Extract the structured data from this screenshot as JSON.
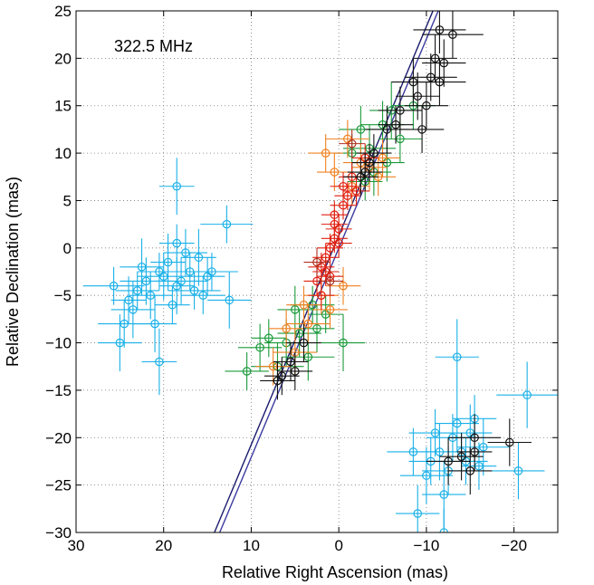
{
  "chart_data": {
    "type": "scatter",
    "title": "",
    "annotation": "322.5 MHz",
    "xlabel": "Relative Right Ascension (mas)",
    "ylabel": "Relative Declination (mas)",
    "xlim": [
      30,
      -25
    ],
    "ylim": [
      -30,
      25
    ],
    "x_ticks": [
      30,
      20,
      10,
      0,
      -10,
      -20
    ],
    "x_tick_labels": [
      "30",
      "20",
      "10",
      "0",
      "−10",
      "−20"
    ],
    "y_ticks": [
      25,
      20,
      15,
      10,
      5,
      0,
      -5,
      -10,
      -15,
      -20,
      -25,
      -30
    ],
    "y_tick_labels": [
      "25",
      "20",
      "15",
      "10",
      "5",
      "0",
      "−5",
      "−10",
      "−15",
      "−20",
      "−25",
      "−30"
    ],
    "grid": true,
    "colors": {
      "cyan": "#1ab0e8",
      "green": "#1a9a3a",
      "orange": "#f08020",
      "red": "#e02010",
      "dark_red": "#b03020",
      "black": "#111111",
      "line_navy": "#1a1a6e",
      "line_blue": "#3a3aa0"
    },
    "lines": [
      {
        "x": [
          -11.2,
          14.2
        ],
        "y": [
          26.0,
          -30.0
        ],
        "color": "#1a1a6e"
      },
      {
        "x": [
          -11.8,
          13.6
        ],
        "y": [
          26.0,
          -30.0
        ],
        "color": "#3a3aa0"
      }
    ],
    "series": [
      {
        "color": "#1ab0e8",
        "points": [
          [
            18.5,
            6.5,
            2.0,
            3.0
          ],
          [
            12.8,
            2.5,
            3.0,
            2.0
          ],
          [
            12.5,
            -5.5,
            2.5,
            3.0
          ],
          [
            25.7,
            -4.0,
            3.5,
            2.0
          ],
          [
            22.5,
            -2.0,
            2.5,
            3.0
          ],
          [
            20.0,
            -3.0,
            3.0,
            2.5
          ],
          [
            18.5,
            -4.0,
            2.0,
            3.0
          ],
          [
            17.0,
            -2.5,
            3.0,
            2.0
          ],
          [
            21.5,
            -5.0,
            2.5,
            2.5
          ],
          [
            19.5,
            -1.5,
            2.0,
            3.0
          ],
          [
            16.5,
            -4.5,
            3.0,
            2.0
          ],
          [
            15.0,
            -3.0,
            2.0,
            2.0
          ],
          [
            23.5,
            -6.5,
            2.5,
            3.0
          ],
          [
            24.5,
            -8.0,
            3.0,
            2.5
          ],
          [
            21.0,
            -8.0,
            2.5,
            3.0
          ],
          [
            25.0,
            -10.0,
            2.5,
            3.0
          ],
          [
            20.5,
            -12.0,
            2.0,
            3.5
          ],
          [
            18.5,
            0.5,
            2.0,
            2.0
          ],
          [
            17.5,
            -0.5,
            2.5,
            2.5
          ],
          [
            14.5,
            -2.5,
            3.0,
            2.0
          ],
          [
            19.0,
            -6.0,
            2.0,
            2.0
          ],
          [
            22.0,
            -3.5,
            3.0,
            2.5
          ],
          [
            23.0,
            -4.5,
            2.5,
            2.0
          ],
          [
            16.0,
            -1.0,
            2.0,
            3.0
          ],
          [
            20.5,
            -2.5,
            2.5,
            2.0
          ],
          [
            18.0,
            -3.5,
            3.0,
            2.5
          ],
          [
            24.0,
            -5.5,
            2.0,
            2.5
          ],
          [
            15.5,
            -5.0,
            2.5,
            2.0
          ],
          [
            -13.5,
            -11.5,
            2.5,
            4.0
          ],
          [
            -21.5,
            -15.5,
            3.5,
            3.5
          ],
          [
            -20.5,
            -23.5,
            3.0,
            3.0
          ],
          [
            -8.5,
            -21.5,
            3.0,
            2.5
          ],
          [
            -11.5,
            -21.5,
            2.5,
            3.0
          ],
          [
            -13.0,
            -20.0,
            3.0,
            2.5
          ],
          [
            -14.5,
            -22.5,
            2.5,
            2.5
          ],
          [
            -10.0,
            -24.0,
            3.0,
            3.0
          ],
          [
            -12.0,
            -26.0,
            2.5,
            3.5
          ],
          [
            -9.0,
            -28.0,
            2.5,
            3.0
          ],
          [
            -16.5,
            -21.0,
            3.0,
            3.0
          ],
          [
            -15.0,
            -19.5,
            2.5,
            3.0
          ],
          [
            -12.5,
            -23.5,
            3.0,
            2.5
          ],
          [
            -13.5,
            -18.5,
            2.5,
            3.0
          ],
          [
            -11.0,
            -19.5,
            3.0,
            2.5
          ],
          [
            -14.0,
            -21.5,
            2.0,
            2.0
          ],
          [
            -10.5,
            -22.5,
            2.5,
            2.5
          ],
          [
            -12.0,
            -30.0,
            2.5,
            2.5
          ],
          [
            -15.5,
            -18.0,
            2.5,
            2.5
          ],
          [
            -16.0,
            -23.0,
            2.0,
            2.5
          ]
        ]
      },
      {
        "color": "#1a9a3a",
        "points": [
          [
            10.5,
            -13.0,
            2.5,
            2.0
          ],
          [
            9.0,
            -10.5,
            2.5,
            2.5
          ],
          [
            7.0,
            -12.5,
            3.0,
            2.5
          ],
          [
            6.0,
            -10.0,
            2.5,
            2.5
          ],
          [
            4.5,
            -9.0,
            2.5,
            2.5
          ],
          [
            3.5,
            -11.5,
            3.0,
            2.5
          ],
          [
            2.5,
            -8.5,
            2.0,
            2.5
          ],
          [
            -0.5,
            -10.0,
            2.5,
            3.0
          ],
          [
            5.0,
            -6.5,
            2.0,
            2.5
          ],
          [
            3.0,
            -6.0,
            2.5,
            2.0
          ],
          [
            1.5,
            -7.0,
            2.0,
            2.0
          ],
          [
            8.0,
            -9.5,
            2.0,
            2.0
          ],
          [
            -2.5,
            12.5,
            2.5,
            2.5
          ],
          [
            -3.5,
            10.5,
            3.0,
            2.5
          ],
          [
            -5.0,
            13.0,
            2.5,
            2.5
          ],
          [
            -6.0,
            14.5,
            2.5,
            3.0
          ],
          [
            -4.0,
            8.0,
            2.0,
            2.5
          ],
          [
            -7.0,
            11.5,
            2.5,
            2.5
          ],
          [
            -5.5,
            9.0,
            2.0,
            2.0
          ],
          [
            -8.5,
            15.0,
            2.5,
            2.5
          ],
          [
            -1.5,
            10.0,
            2.0,
            2.0
          ],
          [
            -3.0,
            7.0,
            2.0,
            2.0
          ]
        ]
      },
      {
        "color": "#f08020",
        "points": [
          [
            1.5,
            10.0,
            2.0,
            2.0
          ],
          [
            -1.0,
            11.5,
            2.5,
            2.0
          ],
          [
            -2.5,
            9.0,
            2.0,
            2.0
          ],
          [
            -3.5,
            8.5,
            2.0,
            2.5
          ],
          [
            -5.0,
            9.5,
            2.0,
            2.0
          ],
          [
            -4.5,
            7.5,
            2.0,
            2.0
          ],
          [
            0.5,
            8.0,
            2.0,
            2.0
          ],
          [
            -1.5,
            6.5,
            2.0,
            2.0
          ],
          [
            4.0,
            -6.0,
            2.0,
            2.0
          ],
          [
            3.5,
            -8.0,
            2.5,
            2.0
          ],
          [
            5.0,
            -11.0,
            2.5,
            2.5
          ],
          [
            7.5,
            -12.5,
            2.0,
            2.0
          ],
          [
            2.0,
            -5.0,
            2.0,
            2.0
          ],
          [
            1.0,
            -6.5,
            2.0,
            2.0
          ],
          [
            6.0,
            -8.5,
            2.0,
            2.0
          ],
          [
            -0.5,
            -4.0,
            2.0,
            2.0
          ]
        ]
      },
      {
        "color": "#e02010",
        "points": [
          [
            0.5,
            3.5,
            1.5,
            1.5
          ],
          [
            0.0,
            2.0,
            1.5,
            1.5
          ],
          [
            -0.5,
            4.5,
            1.5,
            1.5
          ],
          [
            0.5,
            1.0,
            1.5,
            1.5
          ],
          [
            1.0,
            0.0,
            1.5,
            1.5
          ],
          [
            1.5,
            -1.0,
            1.5,
            1.5
          ],
          [
            2.0,
            -2.0,
            1.5,
            1.5
          ],
          [
            1.0,
            -3.0,
            1.5,
            1.5
          ],
          [
            2.5,
            -3.5,
            1.5,
            1.5
          ],
          [
            -1.0,
            5.5,
            1.5,
            1.5
          ],
          [
            -0.5,
            6.5,
            1.5,
            1.5
          ],
          [
            -2.0,
            6.0,
            1.5,
            1.5
          ],
          [
            0.0,
            0.5,
            1.5,
            1.5
          ],
          [
            1.5,
            -2.5,
            1.5,
            1.5
          ],
          [
            2.0,
            -5.0,
            1.5,
            1.5
          ],
          [
            -1.5,
            7.5,
            1.5,
            1.5
          ],
          [
            -3.0,
            9.5,
            1.5,
            1.5
          ],
          [
            0.5,
            2.5,
            1.5,
            1.5
          ]
        ]
      },
      {
        "color": "#b03020",
        "points": [
          [
            2.5,
            -1.5,
            1.5,
            1.5
          ],
          [
            1.0,
            -3.5,
            1.5,
            1.5
          ],
          [
            -1.5,
            11.0,
            1.5,
            1.5
          ]
        ]
      },
      {
        "color": "#111111",
        "points": [
          [
            -11.5,
            23.0,
            3.0,
            2.5
          ],
          [
            -13.0,
            22.5,
            3.5,
            2.5
          ],
          [
            -11.0,
            20.0,
            2.5,
            2.5
          ],
          [
            -10.5,
            18.0,
            3.0,
            2.5
          ],
          [
            -9.0,
            16.0,
            2.5,
            2.5
          ],
          [
            -8.5,
            17.5,
            2.5,
            2.5
          ],
          [
            -11.5,
            17.5,
            3.0,
            2.5
          ],
          [
            -10.0,
            15.0,
            2.5,
            2.5
          ],
          [
            -7.0,
            14.5,
            2.5,
            2.5
          ],
          [
            -5.5,
            12.5,
            2.5,
            2.5
          ],
          [
            -6.5,
            13.0,
            2.0,
            2.0
          ],
          [
            -4.0,
            10.0,
            2.0,
            2.0
          ],
          [
            -3.5,
            9.0,
            2.0,
            2.0
          ],
          [
            -3.0,
            8.0,
            2.0,
            2.0
          ],
          [
            -2.5,
            7.5,
            2.0,
            2.0
          ],
          [
            -9.5,
            12.5,
            2.5,
            2.5
          ],
          [
            -12.0,
            19.5,
            2.5,
            2.5
          ],
          [
            5.5,
            -12.0,
            2.0,
            2.0
          ],
          [
            6.5,
            -13.5,
            2.0,
            2.0
          ],
          [
            7.0,
            -14.0,
            2.0,
            2.0
          ],
          [
            5.0,
            -13.0,
            2.0,
            2.0
          ],
          [
            4.0,
            -10.0,
            2.0,
            2.0
          ],
          [
            -15.5,
            -20.0,
            3.0,
            2.5
          ],
          [
            -14.0,
            -22.0,
            2.5,
            2.5
          ],
          [
            -15.0,
            -23.5,
            2.5,
            2.5
          ],
          [
            -12.5,
            -22.5,
            2.5,
            2.5
          ],
          [
            -19.5,
            -20.5,
            2.5,
            2.5
          ],
          [
            -15.5,
            -21.5,
            2.0,
            2.0
          ]
        ]
      }
    ]
  }
}
